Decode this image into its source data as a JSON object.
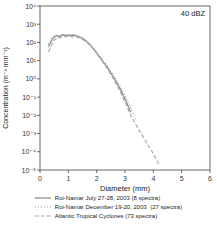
{
  "chart_data": {
    "type": "line",
    "log": "y",
    "annotation": "40 dBZ",
    "xlabel": "Diameter (mm)",
    "ylabel": "Concentration (m⁻³ mm⁻¹)",
    "xlim": [
      0,
      6
    ],
    "xticks": [
      0,
      1,
      2,
      3,
      4,
      5,
      6
    ],
    "ylim": [
      1e-05,
      10000
    ],
    "yticks": [
      {
        "value": 1e-05,
        "label": "10⁻⁵"
      },
      {
        "value": 0.0001,
        "label": "10⁻⁴"
      },
      {
        "value": 0.001,
        "label": "10⁻³"
      },
      {
        "value": 0.01,
        "label": "10⁻²"
      },
      {
        "value": 0.1,
        "label": "10⁻¹"
      },
      {
        "value": 1,
        "label": "10⁰"
      },
      {
        "value": 10,
        "label": "10¹"
      },
      {
        "value": 100,
        "label": "10²"
      },
      {
        "value": 1000,
        "label": "10³"
      },
      {
        "value": 10000,
        "label": "10⁴"
      }
    ],
    "grid": false,
    "legend": "bottom",
    "series": [
      {
        "name": "Roi-Namar July 27-28, 2003 (8 spectra)",
        "color": "#888888",
        "line_style": "solid",
        "x": [
          0.3,
          0.4,
          0.5,
          0.6,
          0.65,
          0.7,
          0.75,
          0.8,
          0.85,
          0.9,
          0.95,
          1.0,
          1.1,
          1.2,
          1.3,
          1.4,
          1.5,
          1.6,
          1.7,
          1.8,
          1.9,
          2.0,
          2.2,
          2.4,
          2.6,
          2.8,
          3.0,
          3.2
        ],
        "values": [
          60,
          120,
          200,
          240,
          215,
          210,
          250,
          260,
          240,
          255,
          240,
          255,
          245,
          250,
          230,
          200,
          170,
          130,
          95,
          65,
          42,
          25,
          10,
          3.8,
          1.2,
          0.35,
          0.08,
          0.015
        ]
      },
      {
        "name": "Roi-Namar December 19-20, 2003  (27 spectra)",
        "color": "#999999",
        "line_style": "dotted",
        "x": [
          0.3,
          0.4,
          0.5,
          0.6,
          0.65,
          0.7,
          0.75,
          0.8,
          0.85,
          0.9,
          0.95,
          1.0,
          1.1,
          1.2,
          1.3,
          1.4,
          1.5,
          1.6,
          1.7,
          1.8,
          1.9,
          2.0,
          2.2,
          2.4,
          2.6,
          2.8,
          3.0,
          3.2,
          3.4
        ],
        "values": [
          80,
          160,
          240,
          270,
          230,
          220,
          260,
          275,
          260,
          270,
          255,
          265,
          255,
          260,
          240,
          205,
          175,
          135,
          100,
          70,
          48,
          30,
          12,
          4.5,
          1.5,
          0.45,
          0.12,
          0.025,
          0.005
        ]
      },
      {
        "name": "Atlantic Tropical Cyclones (73 spectra)",
        "color": "#aaaaaa",
        "line_style": "dashed",
        "x": [
          0.3,
          0.4,
          0.5,
          0.6,
          0.7,
          0.8,
          0.9,
          1.0,
          1.1,
          1.2,
          1.3,
          1.4,
          1.5,
          1.6,
          1.7,
          1.8,
          1.9,
          2.0,
          2.2,
          2.4,
          2.6,
          2.8,
          3.0,
          3.2,
          3.5,
          3.8,
          4.0,
          4.2
        ],
        "values": [
          30,
          70,
          130,
          180,
          185,
          200,
          210,
          215,
          210,
          205,
          195,
          175,
          148,
          115,
          85,
          60,
          40,
          25,
          9.5,
          3.2,
          0.95,
          0.25,
          0.055,
          0.01,
          0.0015,
          0.00025,
          8e-05,
          2e-05
        ]
      }
    ]
  }
}
